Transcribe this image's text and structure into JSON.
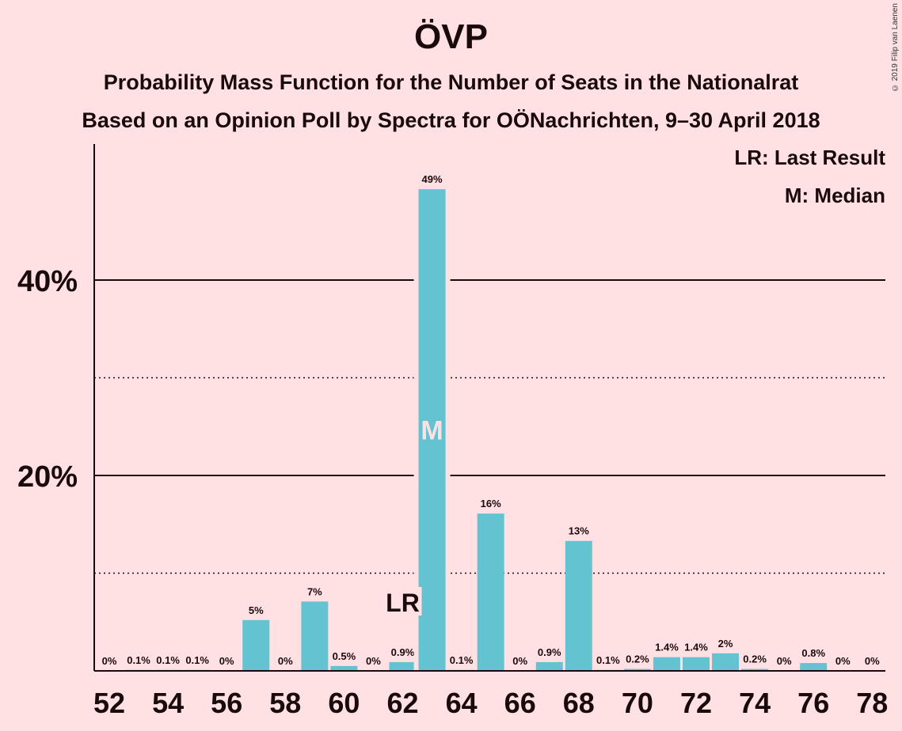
{
  "header": {
    "title": "ÖVP",
    "subtitle1": "Probability Mass Function for the Number of Seats in the Nationalrat",
    "subtitle2": "Based on an Opinion Poll by Spectra for OÖNachrichten, 9–30 April 2018",
    "copyright": "© 2019 Filip van Laenen"
  },
  "legend": {
    "last_result": "LR: Last Result",
    "median": "M: Median"
  },
  "colors": {
    "background": "#ffe1e4",
    "bar": "#63c3d1",
    "text": "#1a0a0c"
  },
  "chart_data": {
    "type": "bar",
    "title": "ÖVP",
    "xlabel": "",
    "ylabel": "",
    "ylim": [
      0,
      54
    ],
    "yticks": [
      20,
      40
    ],
    "ytick_labels": [
      "20%",
      "40%"
    ],
    "dotted_gridlines": [
      10,
      30
    ],
    "xtick_labels": [
      "52",
      "54",
      "56",
      "58",
      "60",
      "62",
      "64",
      "66",
      "68",
      "70",
      "72",
      "74",
      "76",
      "78"
    ],
    "categories": [
      52,
      53,
      54,
      55,
      56,
      57,
      58,
      59,
      60,
      61,
      62,
      63,
      64,
      65,
      66,
      67,
      68,
      69,
      70,
      71,
      72,
      73,
      74,
      75,
      76,
      77,
      78
    ],
    "values": [
      0,
      0.1,
      0.1,
      0.1,
      0,
      5.2,
      0,
      7.1,
      0.5,
      0,
      0.9,
      49.3,
      0.1,
      16.1,
      0,
      0.9,
      13.3,
      0.1,
      0.2,
      1.4,
      1.4,
      1.8,
      0.2,
      0,
      0.8,
      0,
      0
    ],
    "labels": [
      "0%",
      "0.1%",
      "0.1%",
      "0.1%",
      "0%",
      "5%",
      "0%",
      "7%",
      "0.5%",
      "0%",
      "0.9%",
      "49%",
      "0.1%",
      "16%",
      "0%",
      "0.9%",
      "13%",
      "0.1%",
      "0.2%",
      "1.4%",
      "1.4%",
      "2%",
      "0.2%",
      "0%",
      "0.8%",
      "0%",
      "0%"
    ],
    "last_result": 62,
    "last_result_label": "LR",
    "median": 63,
    "median_label": "M"
  }
}
